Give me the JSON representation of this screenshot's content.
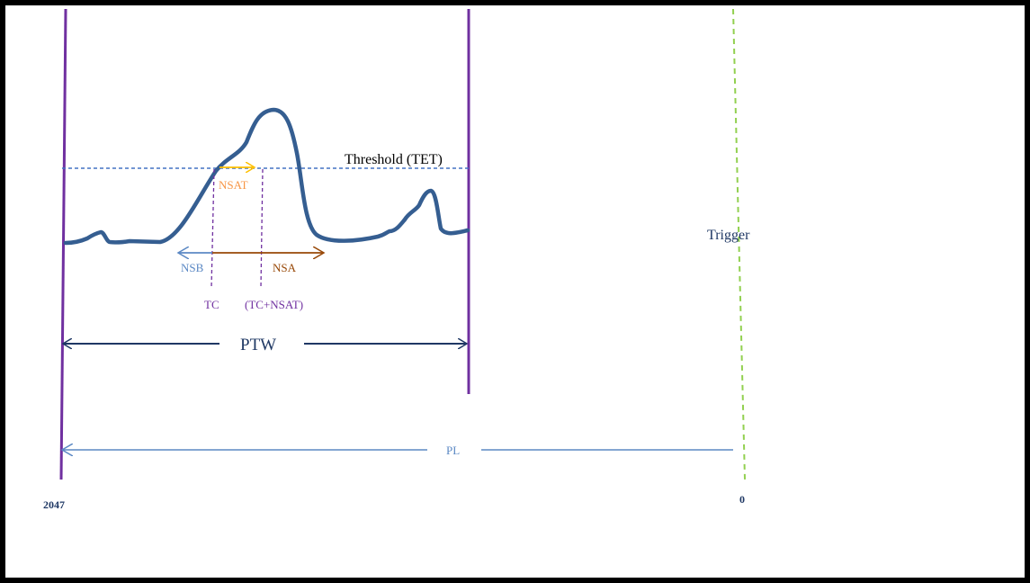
{
  "labels": {
    "threshold": "Threshold (TET)",
    "nsat": "NSAT",
    "nsb": "NSB",
    "nsa": "NSA",
    "tc": "TC",
    "tc_nsat": "(TC+NSAT)",
    "ptw": "PTW",
    "trigger": "Trigger",
    "pl": "PL",
    "axis_left": "2047",
    "axis_right": "0"
  },
  "colors": {
    "purple": "#7030a0",
    "signal": "#355e91",
    "threshold": "#4472c4",
    "orange": "#f79646",
    "yellow": "#ffc000",
    "steel": "#5b88c4",
    "brown": "#984807",
    "navy": "#1f3864",
    "green": "#92d050"
  }
}
